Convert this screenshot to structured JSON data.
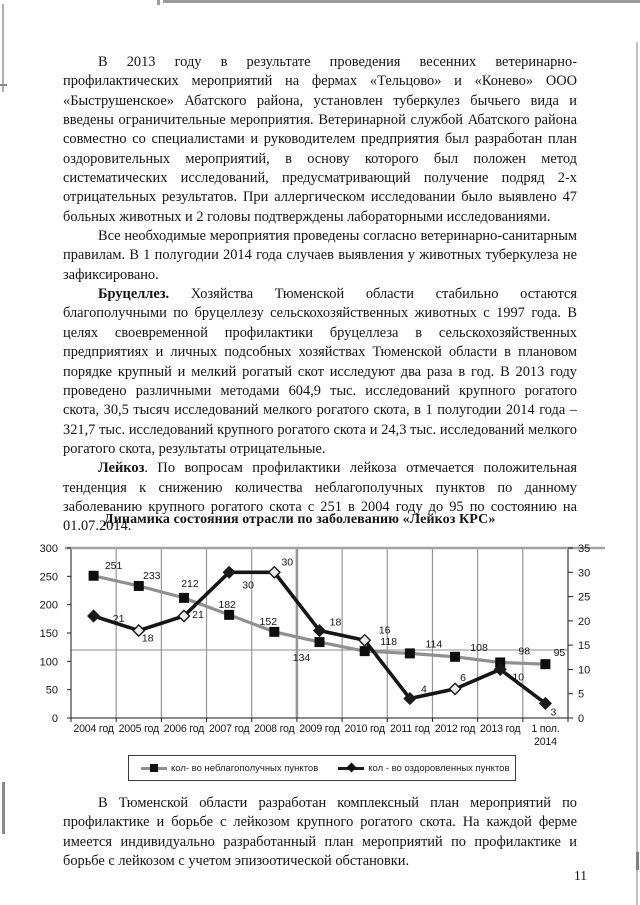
{
  "document": {
    "page_number": "11"
  },
  "paragraphs": [
    {
      "lead": "",
      "text": "В 2013 году в результате проведения весенних ветеринарно-профилактических мероприятий на фермах «Тельцово» и «Конево» ООО «Быструшенское» Абатского района, установлен туберкулез бычьего вида и введены ограничительные мероприятия. Ветеринарной службой Абатского района совместно со специалистами и руководителем предприятия был разработан план оздоровительных мероприятий, в основу которого был положен метод систематических исследований, предусматривающий получение подряд 2-х отрицательных результатов. При аллергическом исследовании было выявлено 47 больных животных и 2 головы подтверждены лабораторными исследованиями."
    },
    {
      "lead": "",
      "text": "Все необходимые мероприятия проведены согласно ветеринарно-санитарным правилам. В 1 полугодии 2014 года случаев выявления у животных туберкулеза не зафиксировано."
    },
    {
      "lead": "Бруцеллез.",
      "text": " Хозяйства Тюменской области стабильно остаются благополучными по бруцеллезу сельскохозяйственных животных с 1997 года. В целях своевременной профилактики бруцеллеза в сельскохозяйственных предприятиях и личных подсобных хозяйствах Тюменской области в плановом порядке крупный и мелкий рогатый скот исследуют два раза в год. В 2013 году проведено различными методами 604,9 тыс. исследований крупного рогатого скота, 30,5 тысяч исследований мелкого рогатого скота, в 1 полугодии 2014 года – 321,7 тыс. исследований крупного рогатого скота и 24,3 тыс. исследований мелкого рогатого скота, результаты отрицательные."
    },
    {
      "lead": "Лейкоз",
      "text": ". По вопросам профилактики лейкоза отмечается положительная тенденция к снижению количества неблагополучных пунктов по данному заболеванию крупного рогатого скота с 251 в 2004 году до 95 по состоянию на 01.07.2014."
    },
    {
      "lead": "",
      "text": "В Тюменской области разработан комплексный план мероприятий по профилактике и борьбе с лейкозом крупного рогатого скота. На каждой ферме имеется индивидуально разработанный план мероприятий по профилактике и борьбе с лейкозом с учетом эпизоотической обстановки."
    }
  ],
  "chart_data": {
    "type": "line",
    "title": "Динамика состояния отрасли по заболеванию «Лейкоз КРС»",
    "categories": [
      "2004 год",
      "2005 год",
      "2006 год",
      "2007 год",
      "2008 год",
      "2009 год",
      "2010 год",
      "2011 год",
      "2012 год",
      "2013 год",
      "1 пол.\n2014"
    ],
    "series": [
      {
        "name": "кол- во неблагополучных пунктов",
        "axis": "left",
        "marker": "square",
        "values": [
          251,
          233,
          212,
          182,
          152,
          134,
          118,
          114,
          108,
          98,
          95
        ]
      },
      {
        "name": "кол - во оздоровленных пунктов",
        "axis": "right",
        "marker": "diamond",
        "values": [
          21,
          18,
          21,
          30,
          30,
          18,
          16,
          4,
          6,
          10,
          3
        ]
      }
    ],
    "left_axis": {
      "min": 0,
      "max": 300,
      "step": 50
    },
    "right_axis": {
      "min": 0,
      "max": 35,
      "step": 5
    },
    "horizontal_gridline_at_left_value": 120,
    "grid": "vertical-category-lines",
    "legend_position": "bottom"
  }
}
